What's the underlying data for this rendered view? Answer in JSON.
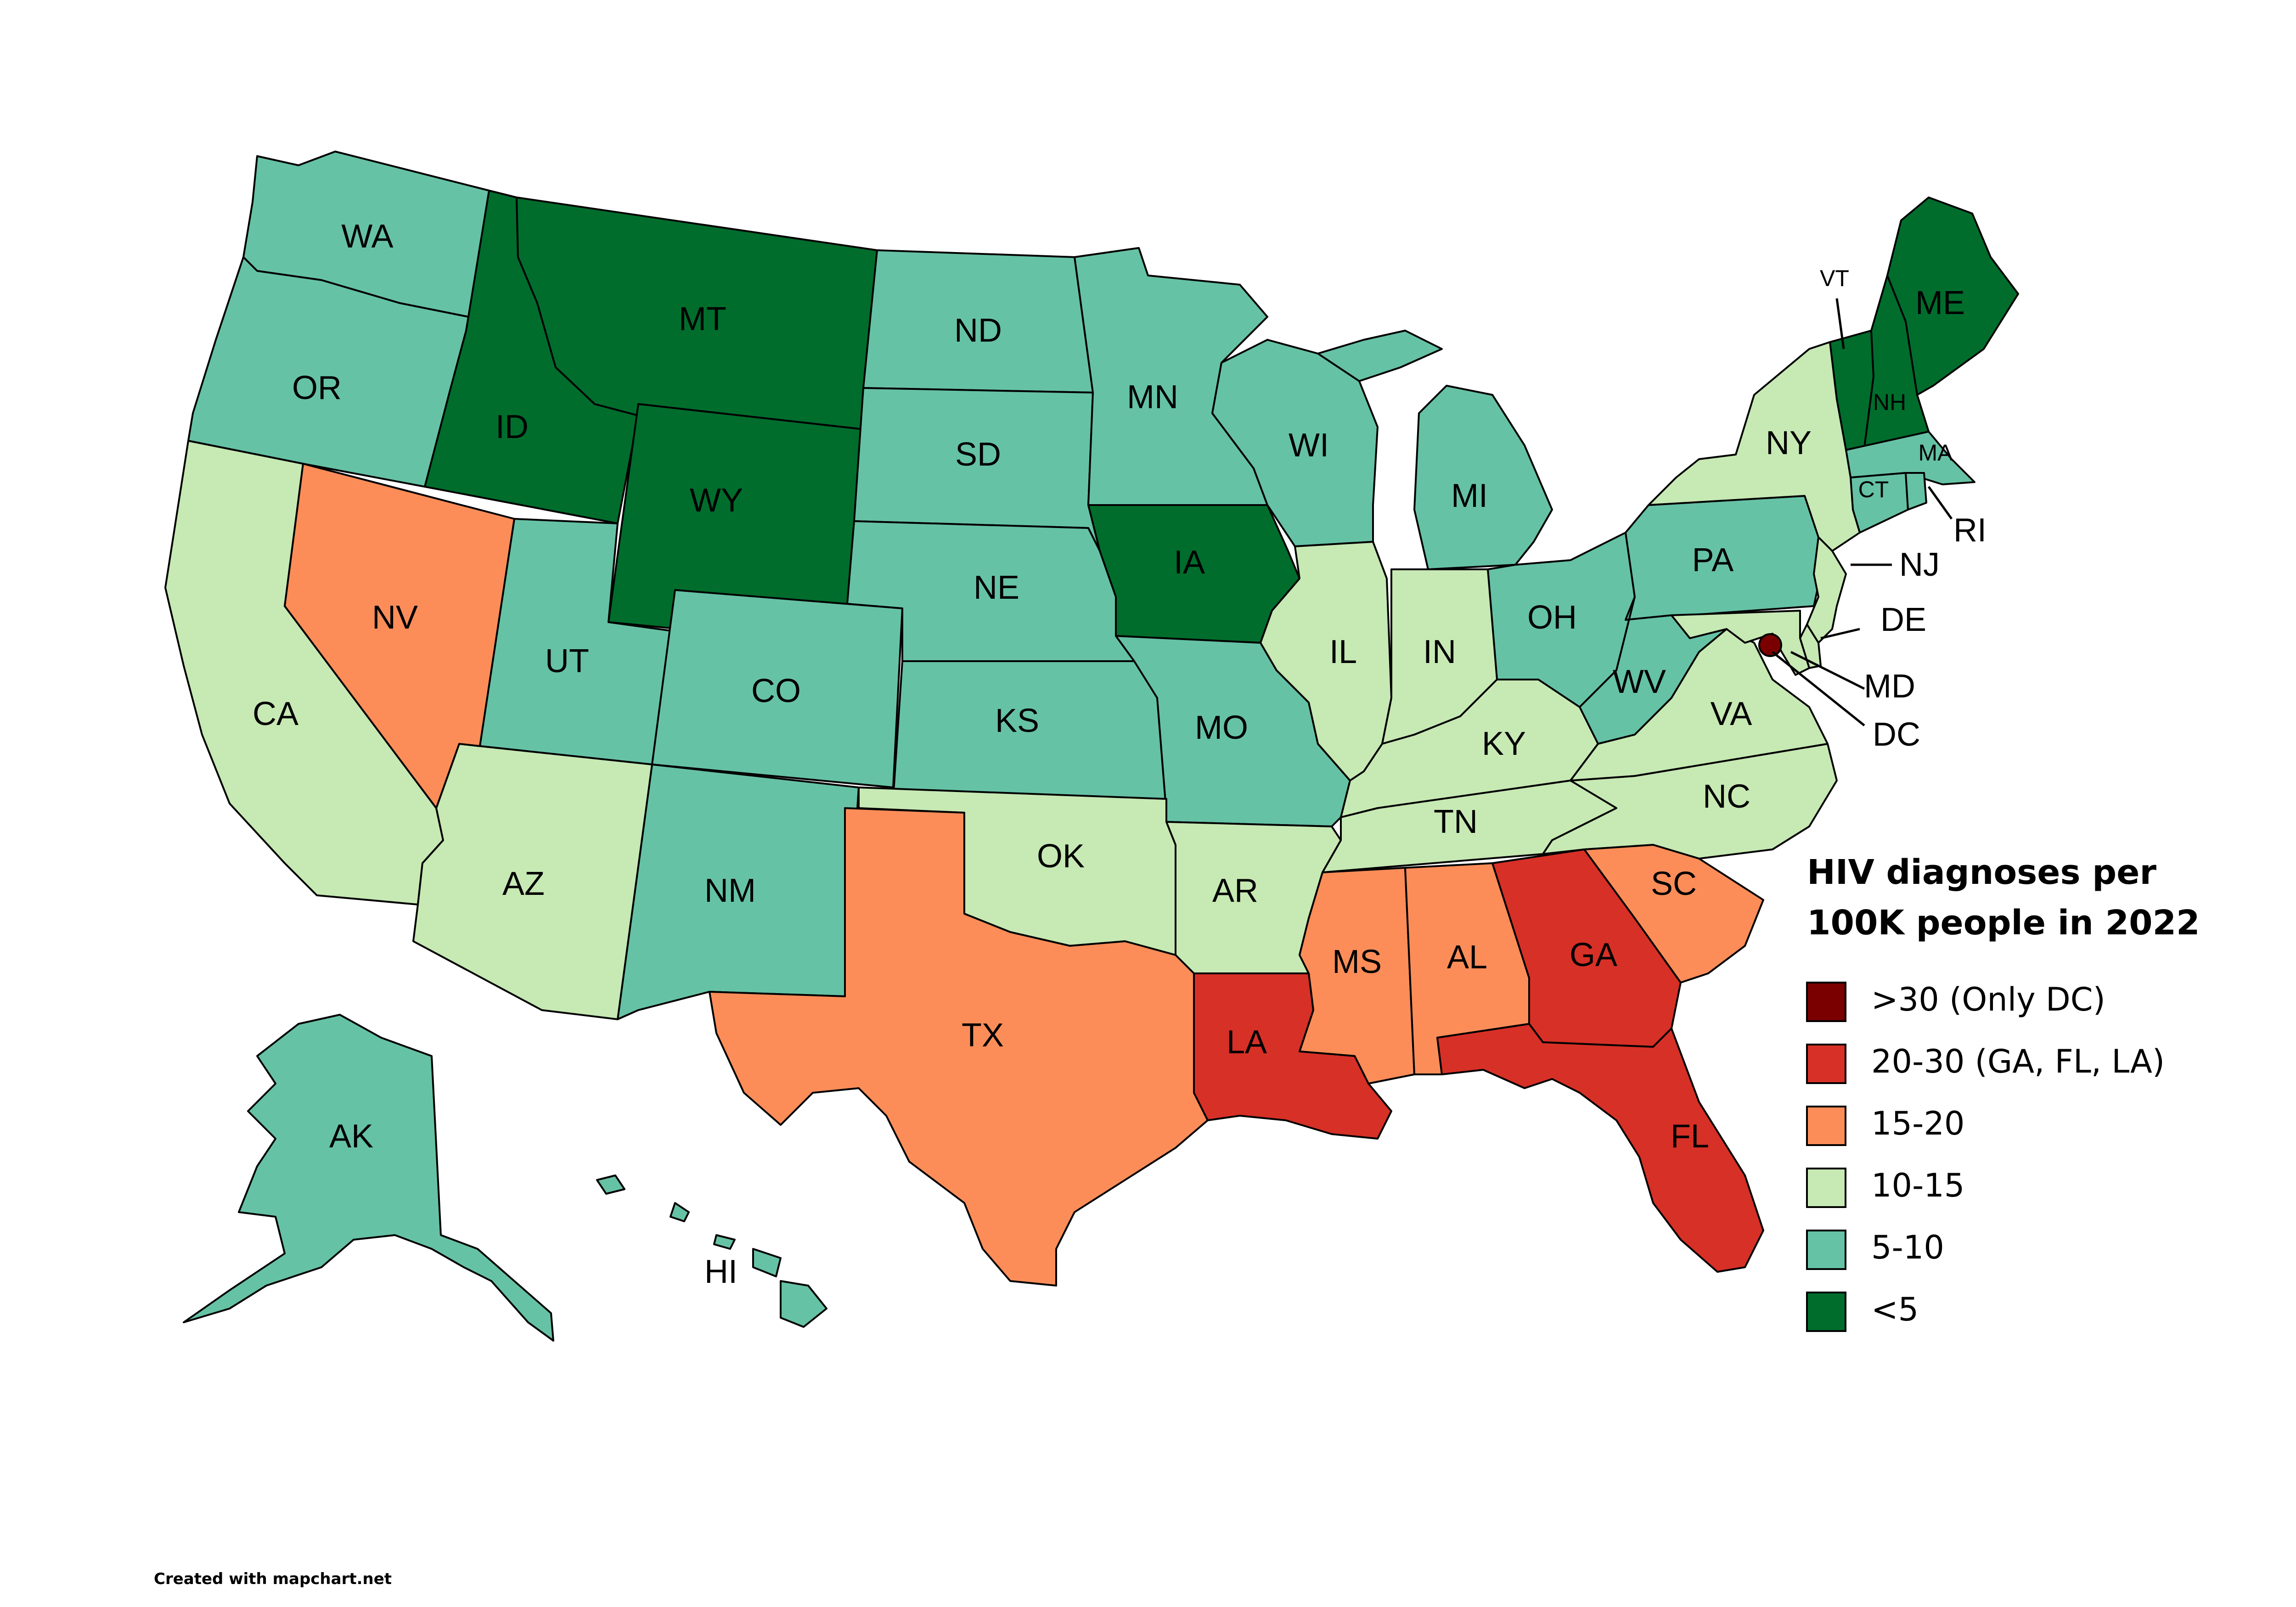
{
  "map": {
    "title_line1": "HIV diagnoses per",
    "title_line2": "100K people in 2022",
    "credit": "Created with mapchart.net"
  },
  "legend": [
    {
      "label": ">30 (Only DC)",
      "color": "#7a0000"
    },
    {
      "label": "20-30 (GA, FL, LA)",
      "color": "#d73027"
    },
    {
      "label": "15-20",
      "color": "#fc8d59"
    },
    {
      "label": "10-15",
      "color": "#c7e9b4"
    },
    {
      "label": "5-10",
      "color": "#66c2a5"
    },
    {
      "label": "<5",
      "color": "#006d2c"
    }
  ],
  "states": {
    "WA": "WA",
    "OR": "OR",
    "CA": "CA",
    "ID": "ID",
    "NV": "NV",
    "MT": "MT",
    "WY": "WY",
    "UT": "UT",
    "AZ": "AZ",
    "CO": "CO",
    "NM": "NM",
    "ND": "ND",
    "SD": "SD",
    "NE": "NE",
    "KS": "KS",
    "OK": "OK",
    "TX": "TX",
    "MN": "MN",
    "IA": "IA",
    "MO": "MO",
    "AR": "AR",
    "LA": "LA",
    "WI": "WI",
    "IL": "IL",
    "MI": "MI",
    "IN": "IN",
    "OH": "OH",
    "KY": "KY",
    "TN": "TN",
    "MS": "MS",
    "AL": "AL",
    "GA": "GA",
    "FL": "FL",
    "SC": "SC",
    "NC": "NC",
    "VA": "VA",
    "WV": "WV",
    "PA": "PA",
    "NY": "NY",
    "ME": "ME",
    "VT": "VT",
    "NH": "NH",
    "MA": "MA",
    "CT": "CT",
    "RI": "RI",
    "NJ": "NJ",
    "DE": "DE",
    "MD": "MD",
    "DC": "DC",
    "AK": "AK",
    "HI": "HI"
  }
}
